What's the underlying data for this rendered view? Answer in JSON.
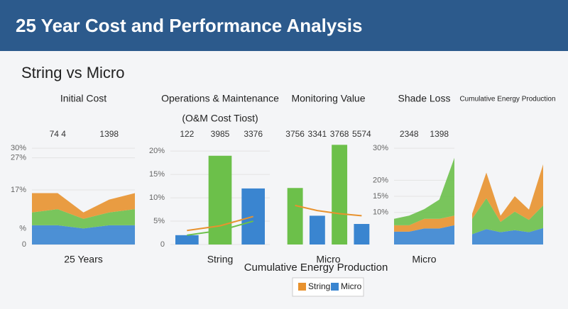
{
  "header": {
    "title": "25 Year Cost and Performance Analysis",
    "subtitle": "String vs Micro"
  },
  "chart_data": [
    {
      "type": "area",
      "title": "Initial Cost",
      "xlabel": "25 Years",
      "categories": [
        null,
        null,
        null,
        null,
        null
      ],
      "ylim": [
        0,
        32
      ],
      "yticks": [
        0,
        {
          "value": 5,
          "label": "%"
        },
        {
          "value": 17,
          "label": "17%"
        },
        {
          "value": 27,
          "label": "27%"
        },
        {
          "value": 30,
          "label": "30%"
        }
      ],
      "series": [
        {
          "color": "#3a85d0",
          "values": [
            6,
            6,
            5,
            6,
            6
          ]
        },
        {
          "color": "#6cc04a",
          "values": [
            4,
            5,
            3,
            4,
            5
          ]
        },
        {
          "color": "#e8922e",
          "values": [
            6,
            5,
            2,
            4,
            5
          ]
        }
      ],
      "annotations": [
        "74 4",
        "1398"
      ]
    },
    {
      "type": "bar",
      "title": "Operations & Maintenance",
      "subtitle": "(O&M Cost Tiost)",
      "xlabel": "String",
      "categories": [
        null,
        null,
        null
      ],
      "ylim": [
        0,
        22
      ],
      "yticks": [
        0,
        {
          "value": 5,
          "label": "5%"
        },
        {
          "value": 10,
          "label": "10%"
        },
        {
          "value": 15,
          "label": "15%"
        },
        {
          "value": 20,
          "label": "20%"
        }
      ],
      "series": [
        {
          "color": "#3a85d0",
          "values": [
            2,
            null,
            12
          ]
        },
        {
          "color": "#6cc04a",
          "values": [
            null,
            19,
            null
          ]
        },
        {
          "color": "#e8922e",
          "kind": "line",
          "values": [
            3,
            4,
            6
          ]
        },
        {
          "color": "#6cc04a",
          "kind": "line",
          "values": [
            2,
            3,
            5
          ]
        }
      ],
      "annotations": [
        "122",
        "3985",
        "3376"
      ]
    },
    {
      "type": "bar",
      "title": "Monitoring Value",
      "xlabel": "Micro",
      "categories": [
        null,
        null,
        null,
        null
      ],
      "ylim": [
        0,
        100
      ],
      "series": [
        {
          "color": "#6cc04a",
          "values": [
            55,
            null,
            97,
            null
          ]
        },
        {
          "color": "#3a85d0",
          "values": [
            null,
            28,
            null,
            20
          ]
        },
        {
          "color": "#e8922e",
          "kind": "line",
          "values": [
            38,
            33,
            30,
            28
          ]
        }
      ],
      "annotations": [
        "3756",
        "3341",
        "3768",
        "5574"
      ]
    },
    {
      "type": "area",
      "title": "Shade Loss",
      "xlabel": "Micro",
      "categories": [
        null,
        null,
        null,
        null,
        null
      ],
      "ylim": [
        0,
        32
      ],
      "yticks": [
        {
          "value": 10,
          "label": "10%"
        },
        {
          "value": 15,
          "label": "15%"
        },
        {
          "value": 20,
          "label": "20%"
        },
        {
          "value": 30,
          "label": "30%"
        }
      ],
      "series": [
        {
          "color": "#3a85d0",
          "values": [
            4,
            4,
            5,
            5,
            6
          ]
        },
        {
          "color": "#e8922e",
          "values": [
            2,
            2,
            3,
            3,
            3
          ]
        },
        {
          "color": "#6cc04a",
          "values": [
            2,
            3,
            3,
            6,
            18
          ]
        }
      ],
      "annotations": [
        "2348",
        "1398"
      ]
    },
    {
      "type": "area",
      "title": "Cumulative Energy Production",
      "categories": [
        null,
        null,
        null,
        null,
        null,
        null
      ],
      "ylim": [
        0,
        100
      ],
      "series": [
        {
          "color": "#3a85d0",
          "values": [
            10,
            15,
            12,
            14,
            12,
            16
          ]
        },
        {
          "color": "#6cc04a",
          "values": [
            15,
            30,
            10,
            18,
            12,
            22
          ]
        },
        {
          "color": "#e8922e",
          "values": [
            5,
            25,
            6,
            15,
            10,
            40
          ]
        }
      ]
    }
  ],
  "legend": {
    "title": "Cumulative Energy Production",
    "items": [
      {
        "name": "String",
        "color": "#e8922e"
      },
      {
        "name": "Micro",
        "color": "#3a85d0"
      }
    ]
  }
}
